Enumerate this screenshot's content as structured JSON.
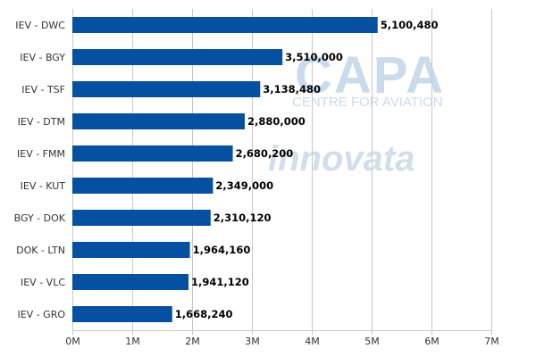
{
  "chart_data": {
    "type": "bar",
    "orientation": "horizontal",
    "categories": [
      "IEV - DWC",
      "IEV - BGY",
      "IEV - TSF",
      "IEV - DTM",
      "IEV - FMM",
      "IEV - KUT",
      "BGY - DOK",
      "DOK - LTN",
      "IEV - VLC",
      "IEV - GRO"
    ],
    "values": [
      5100480,
      3510000,
      3138480,
      2880000,
      2680200,
      2349000,
      2310120,
      1964160,
      1941120,
      1668240
    ],
    "value_labels": [
      "5,100,480",
      "3,510,000",
      "3,138,480",
      "2,880,000",
      "2,680,200",
      "2,349,000",
      "2,310,120",
      "1,964,160",
      "1,941,120",
      "1,668,240"
    ],
    "x_ticks": [
      0,
      1000000,
      2000000,
      3000000,
      4000000,
      5000000,
      6000000,
      7000000
    ],
    "x_tick_labels": [
      "0M",
      "1M",
      "2M",
      "3M",
      "4M",
      "5M",
      "6M",
      "7M"
    ],
    "xlim": [
      0,
      7000000
    ],
    "grid": true,
    "title": "",
    "xlabel": "",
    "ylabel": ""
  },
  "colors": {
    "bar": "#0550a0",
    "grid": "#c8c8c8",
    "text": "#333333",
    "value_text": "#000000",
    "watermark": "#b9cfe6"
  },
  "watermark": {
    "capa_logo_text": "CAPA",
    "capa_tagline": "CENTRE FOR AVIATION",
    "innovata_logo_text": "innovata"
  }
}
